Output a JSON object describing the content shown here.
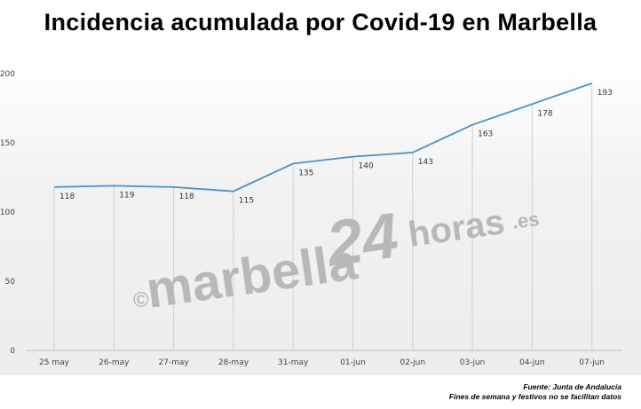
{
  "header": {
    "title": "Incidencia acumulada por Covid-19 en Marbella"
  },
  "watermark": {
    "prefix": "©",
    "word": "marbella",
    "number": "24",
    "suffix": "horas",
    "tld": ".es"
  },
  "footer": {
    "source": "Fuente: Junta de Andalucía",
    "note": "Fines de semana y festivos no se facilitan datos"
  },
  "colors": {
    "line": "#4a90c8",
    "grid": "#cfcfcf",
    "axis": "#bfbfbf"
  },
  "chart_data": {
    "type": "line",
    "title": "Incidencia acumulada por Covid-19 en Marbella",
    "xlabel": "",
    "ylabel": "",
    "categories": [
      "25 may",
      "26-may",
      "27-may",
      "28-may",
      "31-may",
      "01-jun",
      "02-jun",
      "03-jun",
      "04-jun",
      "07-jun"
    ],
    "values": [
      118,
      119,
      118,
      115,
      135,
      140,
      143,
      163,
      178,
      193
    ],
    "ylim": [
      0,
      200
    ],
    "yticks": [
      0,
      50,
      100,
      150,
      200
    ],
    "grid": "vertical drop lines at each category",
    "legend": "none"
  }
}
